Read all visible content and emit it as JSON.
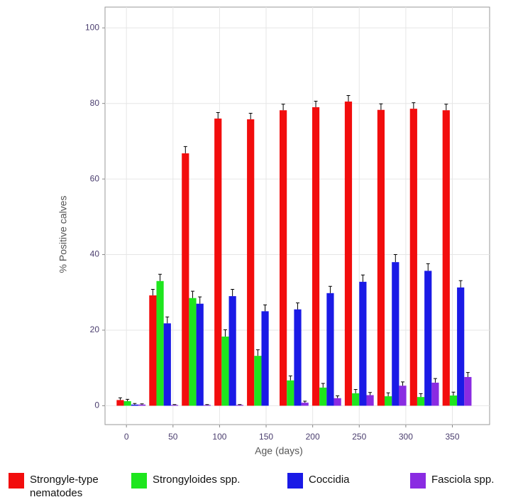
{
  "chart_data": {
    "type": "bar",
    "x_label": "Age (days)",
    "y_label": "% Positive calves",
    "x": [
      5,
      40,
      75,
      110,
      145,
      180,
      215,
      250,
      285,
      320,
      355
    ],
    "series": [
      {
        "name": "Strongyle-type nematodes",
        "color": "#f20d0d",
        "values": [
          1.5,
          29.2,
          66.8,
          76,
          75.8,
          78.2,
          79,
          80.5,
          78.3,
          78.6,
          78.2
        ],
        "errors": [
          0.6,
          1.6,
          1.8,
          1.6,
          1.6,
          1.6,
          1.6,
          1.6,
          1.6,
          1.6,
          1.6
        ]
      },
      {
        "name": "Strongyloides spp.",
        "color": "#1ee61e",
        "values": [
          1.2,
          33,
          28.5,
          18.3,
          13.2,
          6.7,
          4.8,
          3.3,
          2.5,
          2.3,
          2.7
        ],
        "errors": [
          0.5,
          1.8,
          1.8,
          1.8,
          1.6,
          1.2,
          1.1,
          1,
          0.9,
          0.9,
          0.9
        ]
      },
      {
        "name": "Coccidia",
        "color": "#1a1ae6",
        "values": [
          0.3,
          21.8,
          27,
          29,
          25,
          25.5,
          29.8,
          32.8,
          38,
          35.7,
          31.3
        ],
        "errors": [
          0.3,
          1.7,
          1.8,
          1.8,
          1.7,
          1.7,
          1.8,
          1.8,
          2,
          1.9,
          1.8
        ]
      },
      {
        "name": "Fasciola spp.",
        "color": "#8a2be2",
        "values": [
          0.3,
          0.2,
          0.2,
          0.2,
          0,
          0.8,
          2,
          2.8,
          5.3,
          6.1,
          7.6
        ],
        "errors": [
          0.2,
          0.1,
          0.1,
          0.1,
          0,
          0.4,
          0.6,
          0.7,
          1,
          1.1,
          1.2
        ]
      }
    ],
    "xlim": [
      -23,
      390
    ],
    "ylim": [
      -5,
      105.5
    ],
    "xticks": [
      0,
      50,
      100,
      150,
      200,
      250,
      300,
      350
    ],
    "yticks": [
      0,
      20,
      40,
      60,
      80,
      100
    ],
    "grid": true
  }
}
